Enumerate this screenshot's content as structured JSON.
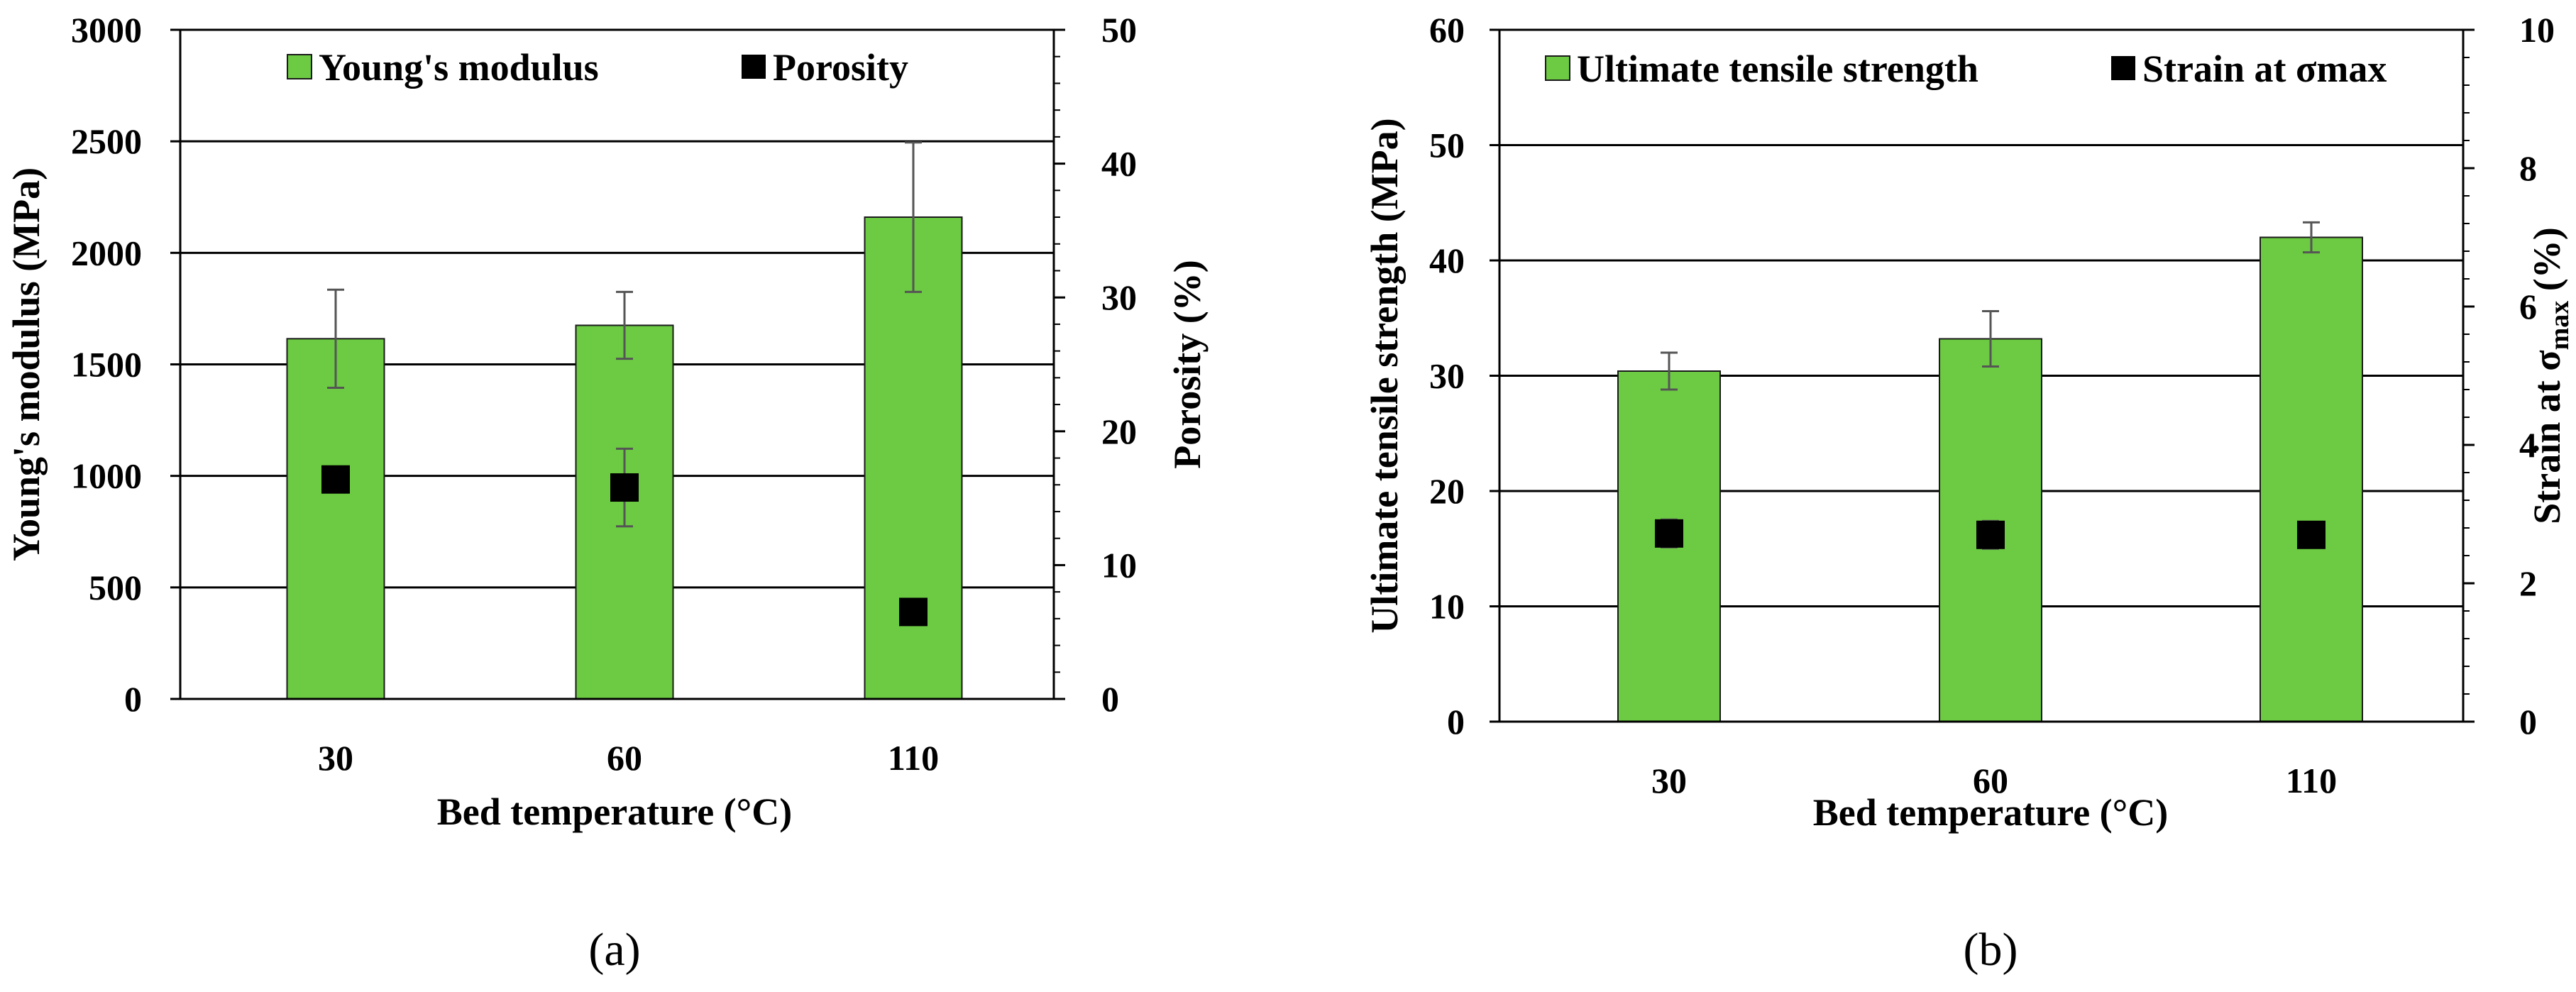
{
  "colors": {
    "bar": "#6CCB42",
    "bar_edge": "#1a1a1a",
    "marker": "#000000",
    "error": "#555555",
    "grid": "#000000"
  },
  "chart_data": [
    {
      "panel": "a",
      "type": "bar",
      "caption": "(a)",
      "categories": [
        "30",
        "60",
        "110"
      ],
      "xlabel": "Bed temperature (°C)",
      "ylabel": "Young's modulus (MPa)",
      "ylim": [
        0,
        3000
      ],
      "yticks": [
        0,
        500,
        1000,
        1500,
        2000,
        2500,
        3000
      ],
      "y2label": "Porosity (%)",
      "y2lim": [
        0,
        50
      ],
      "y2ticks": [
        0,
        10,
        20,
        30,
        40,
        50
      ],
      "y2_minor_step": 2,
      "grid_values": [
        500,
        1000,
        1500,
        2000,
        2500
      ],
      "legend": {
        "bar": "Young's modulus",
        "marker": "Porosity",
        "placement": "top"
      },
      "bars": {
        "name": "Young's modulus",
        "values": [
          1615,
          1675,
          2160
        ],
        "errors": [
          220,
          150,
          335
        ]
      },
      "markers": {
        "name": "Porosity",
        "values": [
          16.4,
          15.8,
          6.5
        ],
        "errors": [
          0,
          2.9,
          0
        ]
      }
    },
    {
      "panel": "b",
      "type": "bar",
      "caption": "(b)",
      "categories": [
        "30",
        "60",
        "110"
      ],
      "xlabel": "Bed temperature (°C)",
      "ylabel": "Ultimate tensile strength (MPa)",
      "ylim": [
        0,
        60
      ],
      "yticks": [
        0,
        10,
        20,
        30,
        40,
        50,
        60
      ],
      "y2label": "Strain at σmax (%)",
      "y2label_base": "Strain at σ",
      "y2label_sub": "max",
      "y2label_tail": " (%)",
      "y2lim": [
        0,
        10
      ],
      "y2ticks": [
        0,
        2,
        4,
        6,
        8,
        10
      ],
      "y2_minor_step": 0.4,
      "grid_values": [
        10,
        20,
        30,
        40,
        50
      ],
      "legend": {
        "bar": "Ultimate tensile strength",
        "marker": "Strain at σmax",
        "placement": "top"
      },
      "bars": {
        "name": "Ultimate tensile strength",
        "values": [
          30.4,
          33.2,
          42.0
        ],
        "errors": [
          1.6,
          2.4,
          1.3
        ]
      },
      "markers": {
        "name": "Strain at σmax",
        "values": [
          2.72,
          2.7,
          2.7
        ],
        "errors": [
          0.2,
          0.2,
          0
        ]
      }
    }
  ]
}
